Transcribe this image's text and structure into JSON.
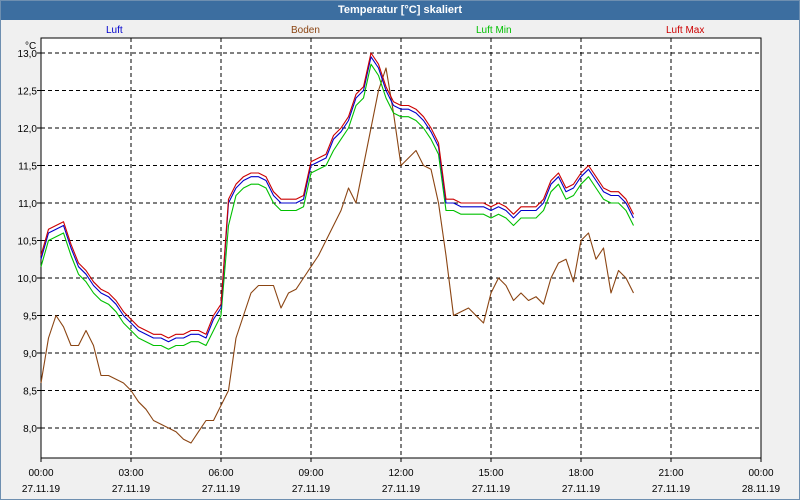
{
  "window": {
    "title": "Temperatur [°C] skaliert"
  },
  "chart_data": {
    "type": "line",
    "title": "Temperatur [°C] skaliert",
    "ylabel": "°C",
    "xlabel": "",
    "ylim": [
      7.6,
      13.2
    ],
    "xlim": [
      0,
      24
    ],
    "grid": true,
    "legend_position": "top",
    "y_ticks": [
      "13,0",
      "12,5",
      "12,0",
      "11,5",
      "11,0",
      "10,5",
      "10,0",
      "9,5",
      "9,0",
      "8,5",
      "8,0"
    ],
    "x_ticks": [
      {
        "time": "00:00",
        "date": "27.11.19"
      },
      {
        "time": "03:00",
        "date": "27.11.19"
      },
      {
        "time": "06:00",
        "date": "27.11.19"
      },
      {
        "time": "09:00",
        "date": "27.11.19"
      },
      {
        "time": "12:00",
        "date": "27.11.19"
      },
      {
        "time": "15:00",
        "date": "27.11.19"
      },
      {
        "time": "18:00",
        "date": "27.11.19"
      },
      {
        "time": "21:00",
        "date": "27.11.19"
      },
      {
        "time": "00:00",
        "date": "28.11.19"
      }
    ],
    "x_hours": [
      0,
      0.25,
      0.5,
      0.75,
      1,
      1.25,
      1.5,
      1.75,
      2,
      2.25,
      2.5,
      2.75,
      3,
      3.25,
      3.5,
      3.75,
      4,
      4.25,
      4.5,
      4.75,
      5,
      5.25,
      5.5,
      5.75,
      6,
      6.25,
      6.5,
      6.75,
      7,
      7.25,
      7.5,
      7.75,
      8,
      8.25,
      8.5,
      8.75,
      9,
      9.25,
      9.5,
      9.75,
      10,
      10.25,
      10.5,
      10.75,
      11,
      11.25,
      11.5,
      11.75,
      12,
      12.25,
      12.5,
      12.75,
      13,
      13.25,
      13.5,
      13.75,
      14,
      14.25,
      14.5,
      14.75,
      15,
      15.25,
      15.5,
      15.75,
      16,
      16.25,
      16.5,
      16.75,
      17,
      17.25,
      17.5,
      17.75,
      18,
      18.25,
      18.5,
      18.75,
      19,
      19.25,
      19.5,
      19.75,
      20,
      20.25,
      20.5,
      20.75,
      21,
      21.25,
      21.5,
      21.75,
      22,
      22.25,
      22.5,
      22.75,
      23,
      23.25,
      23.5,
      23.75,
      24
    ],
    "series": [
      {
        "name": "Luft",
        "color": "#0000cc",
        "values": [
          10.25,
          10.6,
          10.65,
          10.7,
          10.4,
          10.15,
          10.05,
          9.9,
          9.8,
          9.75,
          9.65,
          9.5,
          9.4,
          9.3,
          9.25,
          9.2,
          9.2,
          9.15,
          9.2,
          9.2,
          9.25,
          9.25,
          9.2,
          9.45,
          9.6,
          11.0,
          11.2,
          11.3,
          11.35,
          11.35,
          11.3,
          11.1,
          11.0,
          11.0,
          11.0,
          11.05,
          11.5,
          11.55,
          11.6,
          11.85,
          11.95,
          12.1,
          12.4,
          12.5,
          12.95,
          12.8,
          12.5,
          12.3,
          12.25,
          12.25,
          12.2,
          12.1,
          11.95,
          11.75,
          11.0,
          11.0,
          10.95,
          10.95,
          10.95,
          10.95,
          10.9,
          10.95,
          10.9,
          10.8,
          10.9,
          10.9,
          10.9,
          11.0,
          11.25,
          11.35,
          11.15,
          11.2,
          11.35,
          11.45,
          11.3,
          11.15,
          11.1,
          11.1,
          11.0,
          10.8
        ]
      },
      {
        "name": "Boden",
        "color": "#8b4513",
        "values": [
          8.6,
          9.2,
          9.5,
          9.35,
          9.1,
          9.1,
          9.3,
          9.1,
          8.7,
          8.7,
          8.65,
          8.6,
          8.5,
          8.35,
          8.25,
          8.1,
          8.05,
          8.0,
          7.95,
          7.85,
          7.8,
          7.95,
          8.1,
          8.1,
          8.3,
          8.5,
          9.2,
          9.5,
          9.8,
          9.9,
          9.9,
          9.9,
          9.6,
          9.8,
          9.85,
          10.0,
          10.15,
          10.3,
          10.5,
          10.7,
          10.9,
          11.2,
          11.0,
          11.5,
          12.0,
          12.5,
          12.8,
          12.2,
          11.5,
          11.6,
          11.7,
          11.5,
          11.45,
          11.0,
          10.3,
          9.5,
          9.55,
          9.6,
          9.5,
          9.4,
          9.8,
          10.0,
          9.9,
          9.7,
          9.8,
          9.7,
          9.75,
          9.65,
          10.0,
          10.2,
          10.25,
          9.95,
          10.5,
          10.6,
          10.25,
          10.4,
          9.8,
          10.1,
          10.0,
          9.8
        ]
      },
      {
        "name": "Luft Min",
        "color": "#00c000",
        "values": [
          10.15,
          10.5,
          10.55,
          10.6,
          10.3,
          10.05,
          9.95,
          9.8,
          9.7,
          9.65,
          9.55,
          9.4,
          9.3,
          9.2,
          9.15,
          9.1,
          9.1,
          9.05,
          9.1,
          9.1,
          9.15,
          9.15,
          9.1,
          9.3,
          9.5,
          10.7,
          11.1,
          11.2,
          11.25,
          11.25,
          11.2,
          11.0,
          10.9,
          10.9,
          10.9,
          10.95,
          11.4,
          11.45,
          11.5,
          11.7,
          11.85,
          12.0,
          12.3,
          12.4,
          12.85,
          12.7,
          12.4,
          12.2,
          12.15,
          12.15,
          12.1,
          12.0,
          11.85,
          11.65,
          10.9,
          10.9,
          10.85,
          10.85,
          10.85,
          10.85,
          10.8,
          10.85,
          10.8,
          10.7,
          10.8,
          10.8,
          10.8,
          10.9,
          11.15,
          11.25,
          11.05,
          11.1,
          11.25,
          11.35,
          11.2,
          11.05,
          11.0,
          11.0,
          10.9,
          10.7
        ]
      },
      {
        "name": "Luft Max",
        "color": "#cc0000",
        "values": [
          10.3,
          10.65,
          10.7,
          10.75,
          10.45,
          10.2,
          10.1,
          9.95,
          9.85,
          9.8,
          9.7,
          9.55,
          9.45,
          9.35,
          9.3,
          9.25,
          9.25,
          9.2,
          9.25,
          9.25,
          9.3,
          9.3,
          9.25,
          9.5,
          9.65,
          11.05,
          11.25,
          11.35,
          11.4,
          11.4,
          11.35,
          11.15,
          11.05,
          11.05,
          11.05,
          11.1,
          11.55,
          11.6,
          11.65,
          11.9,
          12.0,
          12.15,
          12.45,
          12.55,
          13.0,
          12.85,
          12.55,
          12.35,
          12.3,
          12.3,
          12.25,
          12.15,
          12.0,
          11.8,
          11.05,
          11.05,
          11.0,
          11.0,
          11.0,
          11.0,
          10.95,
          11.0,
          10.95,
          10.85,
          10.95,
          10.95,
          10.95,
          11.05,
          11.3,
          11.4,
          11.2,
          11.25,
          11.4,
          11.5,
          11.35,
          11.2,
          11.15,
          11.15,
          11.05,
          10.85
        ]
      }
    ]
  }
}
